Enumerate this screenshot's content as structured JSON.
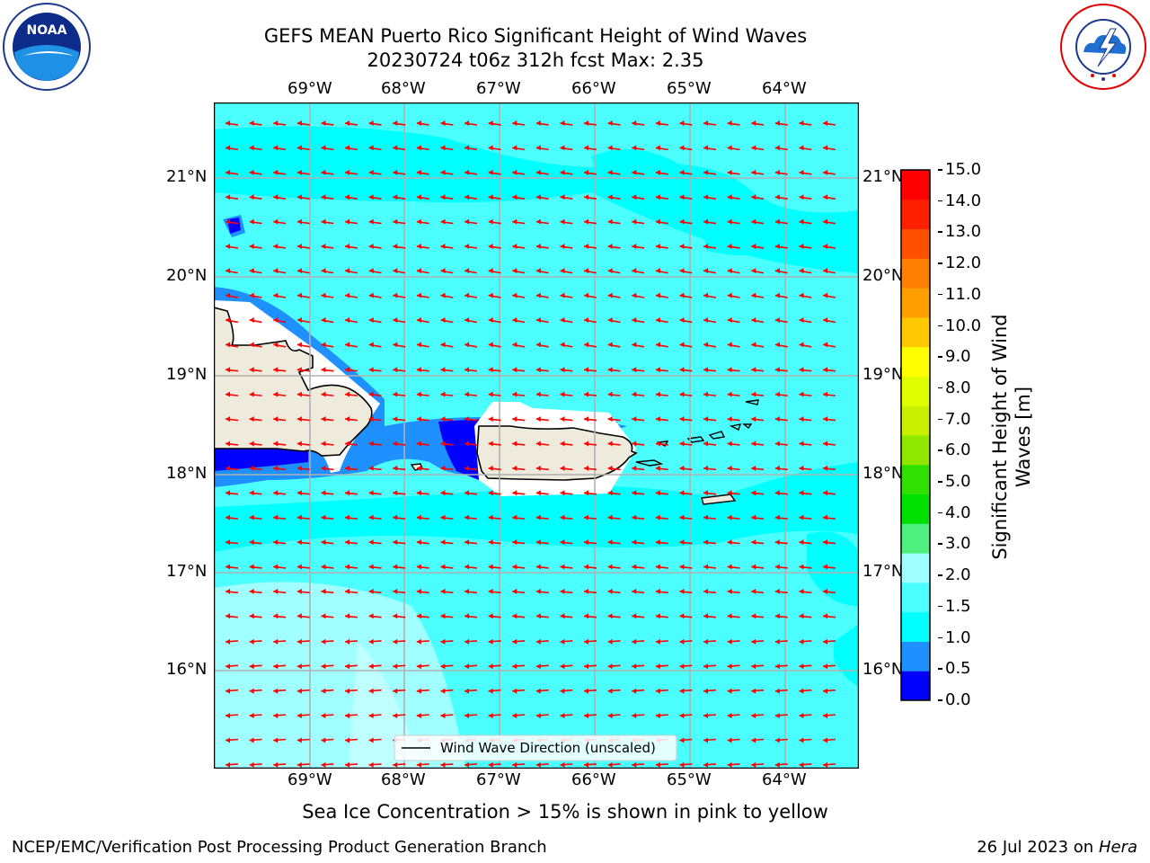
{
  "header": {
    "title_line1": "GEFS MEAN Puerto Rico Significant Height of Wind Waves",
    "title_line2": "20230724 t06z 312h fcst   Max: 2.35",
    "left_logo_text": "NOAA",
    "left_logo_ring_text": "NATIONAL OCEANIC AND ATMOSPHERIC ADMINISTRATION · U.S. DEPARTMENT OF COMMERCE",
    "right_logo_ring_text": "NATIONAL WEATHER SERVICE"
  },
  "map": {
    "lon_labels": [
      "69°W",
      "68°W",
      "67°W",
      "66°W",
      "65°W",
      "64°W"
    ],
    "lat_labels": [
      "21°N",
      "20°N",
      "19°N",
      "18°N",
      "17°N",
      "16°N"
    ],
    "legend_label": "Wind Wave Direction (unscaled)",
    "arrow_color": "#ff0000",
    "land_color": "#efebdc"
  },
  "colorbar": {
    "label": "Significant Height of Wind Waves [m]",
    "ticks": [
      "15.0",
      "14.0",
      "13.0",
      "12.0",
      "11.0",
      "10.0",
      "9.0",
      "8.0",
      "7.0",
      "6.0",
      "5.0",
      "4.0",
      "3.0",
      "2.0",
      "1.5",
      "1.0",
      "0.5",
      "0.0"
    ],
    "colors_bottom_to_top": [
      "#0000ff",
      "#1e90ff",
      "#00ffff",
      "#4cffff",
      "#a0ffff",
      "#50f080",
      "#00e000",
      "#30e000",
      "#90e800",
      "#c8f000",
      "#e0ff00",
      "#ffff00",
      "#ffc800",
      "#ffa000",
      "#ff8000",
      "#ff5000",
      "#ff2000",
      "#ff0000"
    ]
  },
  "footer": {
    "sea_ice_note": "Sea Ice Concentration > 15% is shown in pink to yellow",
    "left_credit": "NCEP/EMC/Verification Post Processing Product Generation Branch",
    "right_date": "26 Jul 2023 on ",
    "right_machine": "Hera"
  }
}
